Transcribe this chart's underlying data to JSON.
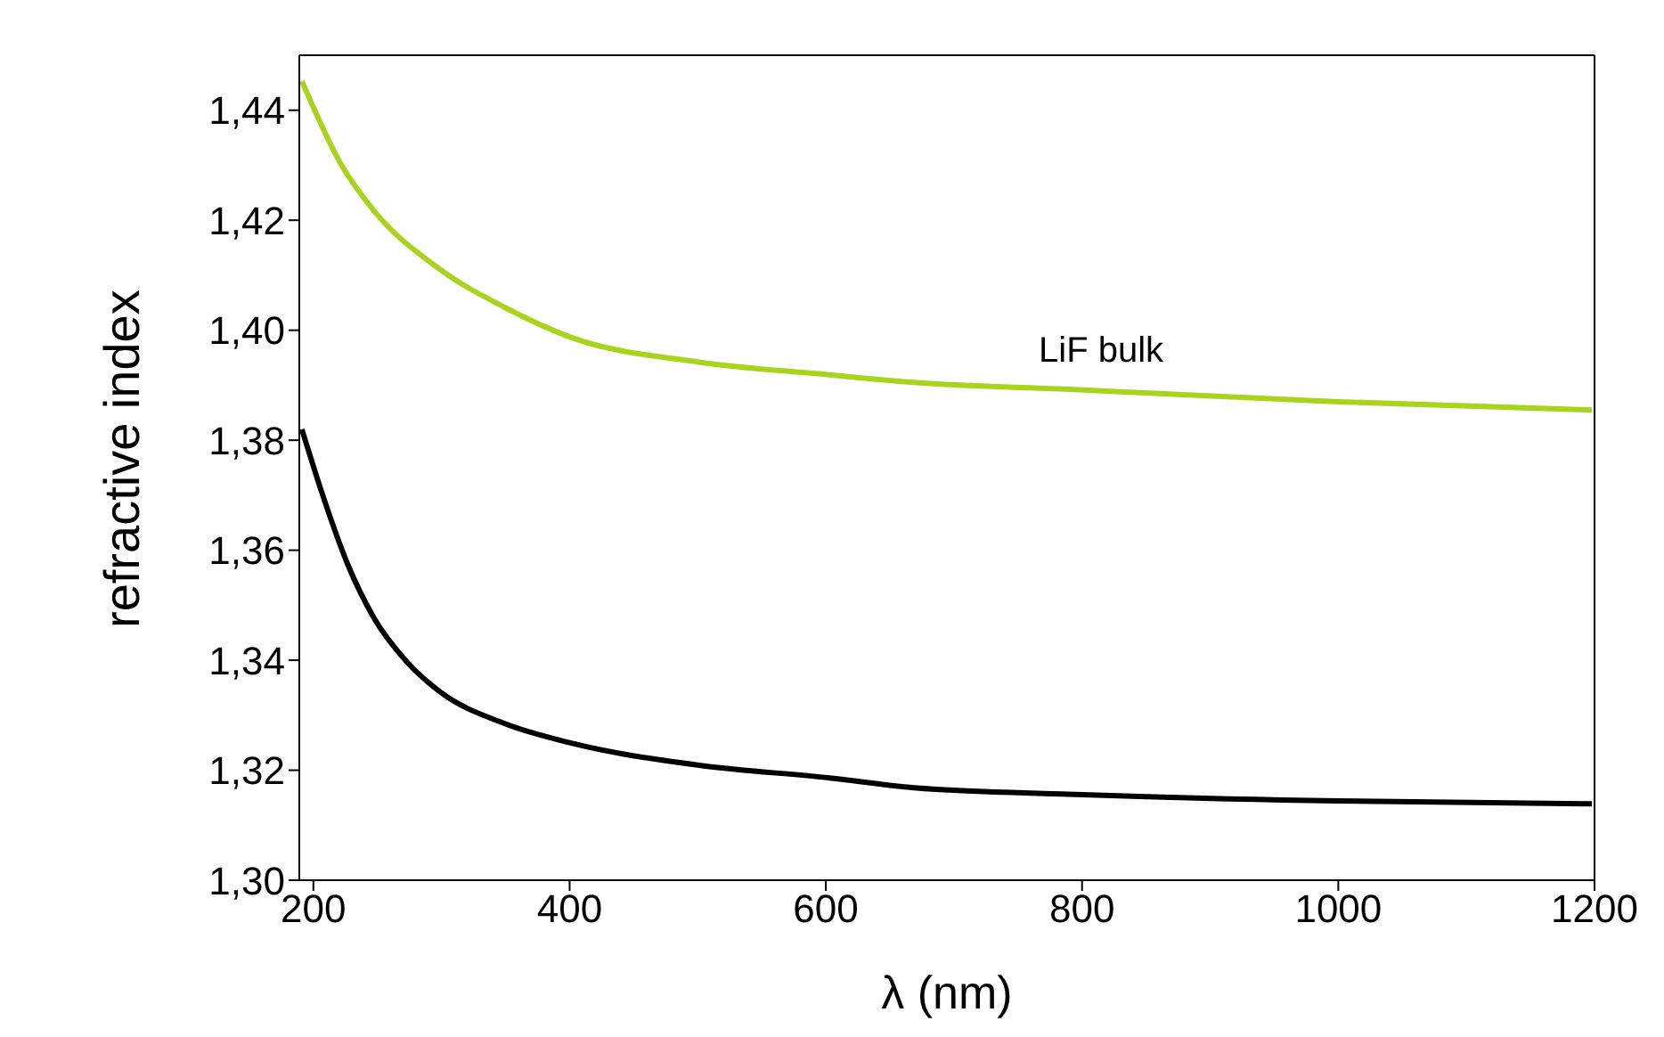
{
  "chart_data": {
    "type": "line",
    "xlabel": "λ (nm)",
    "ylabel": "refractive index",
    "xlim": [
      189,
      1200
    ],
    "xticks": [
      200,
      400,
      600,
      800,
      1000,
      1200
    ],
    "ylim": [
      1.3,
      1.45
    ],
    "yticks": [
      {
        "value": 1.3,
        "label": "1,30"
      },
      {
        "value": 1.32,
        "label": "1,32"
      },
      {
        "value": 1.34,
        "label": "1,34"
      },
      {
        "value": 1.36,
        "label": "1,36"
      },
      {
        "value": 1.38,
        "label": "1,38"
      },
      {
        "value": 1.4,
        "label": "1,40"
      },
      {
        "value": 1.42,
        "label": "1,42"
      },
      {
        "value": 1.44,
        "label": "1,44"
      }
    ],
    "grid": false,
    "marker": "none",
    "line_style": "solid",
    "annotations": [
      "LiF bulk"
    ],
    "series": [
      {
        "color": "#a8d41e",
        "x": [
          191,
          222,
          247,
          298,
          349,
          400,
          501,
          603,
          669,
          795,
          1000,
          1198
        ],
        "values": [
          1.4453,
          1.43,
          1.4218,
          1.4112,
          1.4042,
          1.3988,
          1.3942,
          1.3919,
          1.3905,
          1.3892,
          1.387,
          1.3855
        ]
      },
      {
        "color": "#000000",
        "x": [
          191,
          207,
          227,
          247,
          273,
          298,
          349,
          400,
          501,
          603,
          669,
          795,
          1000,
          1198
        ],
        "values": [
          1.382,
          1.3702,
          1.3573,
          1.3478,
          1.3397,
          1.3344,
          1.3285,
          1.325,
          1.3209,
          1.3186,
          1.3168,
          1.3156,
          1.3144,
          1.3139
        ]
      }
    ]
  }
}
